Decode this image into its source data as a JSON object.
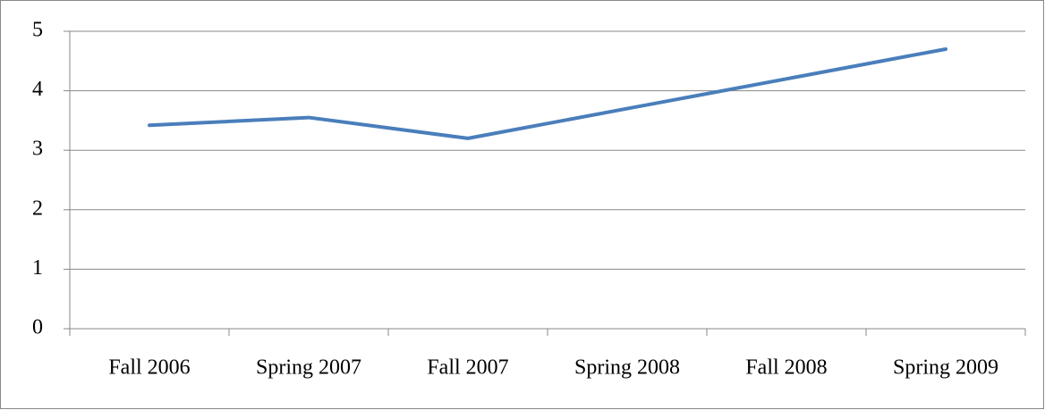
{
  "chart_data": {
    "type": "line",
    "categories": [
      "Fall 2006",
      "Spring 2007",
      "Fall 2007",
      "Spring 2008",
      "Fall 2008",
      "Spring 2009"
    ],
    "series": [
      {
        "color": "#4a7ebb",
        "values": [
          3.42,
          3.55,
          3.2,
          3.7,
          4.2,
          4.7
        ]
      }
    ],
    "ylim": [
      0,
      5
    ],
    "yticks": [
      0,
      1,
      2,
      3,
      4,
      5
    ],
    "grid": true
  }
}
